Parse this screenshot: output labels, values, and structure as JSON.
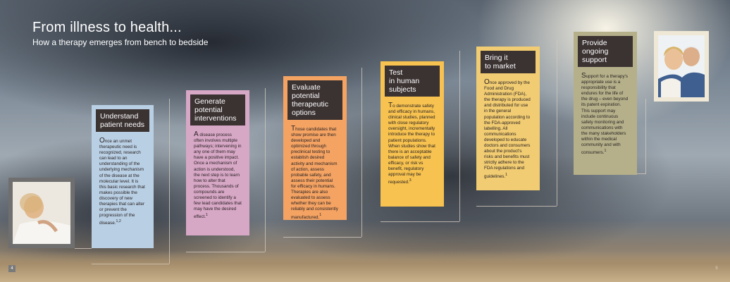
{
  "header": {
    "title": "From illness to health...",
    "subtitle": "How a therapy emerges from bench to bedside"
  },
  "steps": [
    {
      "heading": "Understand\npatient needs",
      "body": "Once an unmet therapeutic need is recognized, research can lead to an understanding of the underlying mechanism of the disease at the molecular level. It is this basic research that makes possible the discovery of new therapies that can alter or prevent the progression of the disease.",
      "ref": "1,2",
      "color": "#b9cfe4"
    },
    {
      "heading": "Generate\npotential\ninterventions",
      "body": "A disease process often involves multiple pathways; intervening in any one of them may have a positive impact. Once a mechanism of action is understood, the next step is to learn how to alter that process. Thousands of compounds are screened to identify a few lead candidates that may have the desired effect.",
      "ref": "1",
      "color": "#d7a7c6"
    },
    {
      "heading": "Evaluate\npotential\ntherapeutic\noptions",
      "body": "Those candidates that show promise are then developed and optimized through preclinical testing to establish desired activity and mechanism of action, assess probable safety, and assess their potential for efficacy in humans. Therapies are also evaluated to assess whether they can be reliably and consistently manufactured.",
      "ref": "1",
      "color": "#f4a363"
    },
    {
      "heading": "Test\nin human\nsubjects",
      "body": "To demonstrate safety and efficacy in humans, clinical studies, planned with close regulatory oversight, incrementally introduce the therapy to patient populations. When studies show that there is an acceptable balance of safety and efficacy, or risk vs benefit, regulatory approval may be requested.",
      "ref": "3",
      "color": "#f7c24f"
    },
    {
      "heading": "Bring it\nto market",
      "body": "Once approved by the Food and Drug Administration (FDA), the therapy is produced and distributed for use in the general population according to the FDA-approved labelling. All communications developed to educate doctors and consumers about the product's risks and benefits must strictly adhere to the FDA regulations and guidelines.",
      "ref": "1",
      "color": "#f1cc72"
    },
    {
      "heading": "Provide\nongoing\nsupport",
      "body": "Support for a therapy's appropriate use is a responsibility that endures for the life of the drug – even beyond its patent expiration. This support may include continuous safety monitoring and communications with the many stakeholders within the medical community and with consumers.",
      "ref": "1",
      "color": "#b5b08a"
    }
  ],
  "page_numbers": {
    "left": "4",
    "right": "5"
  }
}
